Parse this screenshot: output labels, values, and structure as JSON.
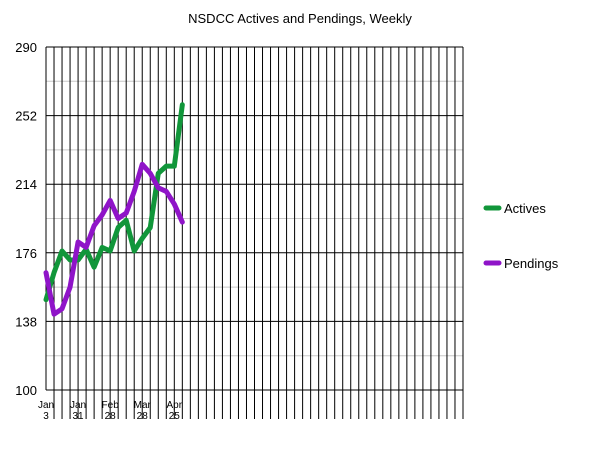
{
  "chart_data": {
    "type": "line",
    "title": "NSDCC Actives and Pendings, Weekly",
    "xlabel": "",
    "ylabel": "",
    "ylim": [
      100,
      290
    ],
    "yticks": [
      100,
      138,
      176,
      214,
      252,
      290
    ],
    "grid": true,
    "x_slots": 52,
    "x_tick_labels": [
      {
        "index": 0,
        "line1": "Jan",
        "line2": "3"
      },
      {
        "index": 4,
        "line1": "Jan",
        "line2": "31"
      },
      {
        "index": 8,
        "line1": "Feb",
        "line2": "28"
      },
      {
        "index": 12,
        "line1": "Mar",
        "line2": "28"
      },
      {
        "index": 16,
        "line1": "Apr",
        "line2": "25"
      }
    ],
    "legend_position": "right",
    "series": [
      {
        "name": "Actives",
        "color": "#11963a",
        "values": [
          150,
          165,
          177,
          172,
          172,
          178,
          168,
          179,
          177,
          190,
          194,
          177,
          184,
          190,
          220,
          224,
          224,
          258
        ]
      },
      {
        "name": "Pendings",
        "color": "#8f14c8",
        "values": [
          165,
          142,
          145,
          157,
          182,
          179,
          191,
          197,
          205,
          195,
          198,
          210,
          225,
          220,
          212,
          210,
          203,
          193
        ]
      }
    ]
  }
}
